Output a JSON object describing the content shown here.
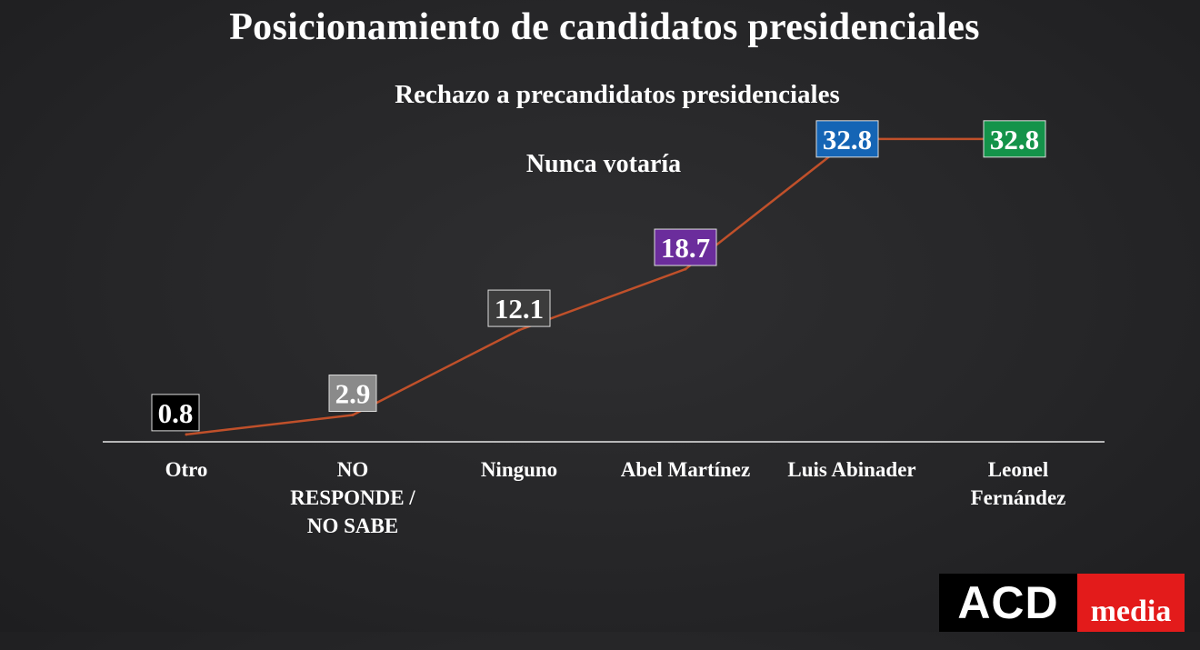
{
  "header": {
    "title": "Posicionamiento de candidatos presidenciales",
    "subtitle": "Rechazo a precandidatos presidenciales",
    "subtitle2": "Nunca votaría"
  },
  "logo": {
    "left_text": "ACD",
    "right_text": "media"
  },
  "chart_data": {
    "type": "line",
    "title": "Rechazo a precandidatos presidenciales",
    "subtitle": "Nunca votaría",
    "categories": [
      [
        "Otro"
      ],
      [
        "NO",
        "RESPONDE /",
        "NO SABE"
      ],
      [
        "Ninguno"
      ],
      [
        "Abel Martínez"
      ],
      [
        "Luis Abinader"
      ],
      [
        "Leonel",
        "Fernández"
      ]
    ],
    "series": [
      {
        "values": [
          0.8,
          2.9,
          12.1,
          18.7,
          32.8,
          32.8
        ],
        "labels": [
          "0.8",
          "2.9",
          "12.1",
          "18.7",
          "32.8",
          "32.8"
        ],
        "line_color": "#c0502a",
        "label_colors": [
          "#000000",
          "#8a8a8a",
          "#3c3c3c",
          "#6b2d9c",
          "#1565b5",
          "#14934a"
        ]
      }
    ],
    "ylim": [
      0,
      35
    ],
    "grid": false,
    "legend": "none"
  }
}
